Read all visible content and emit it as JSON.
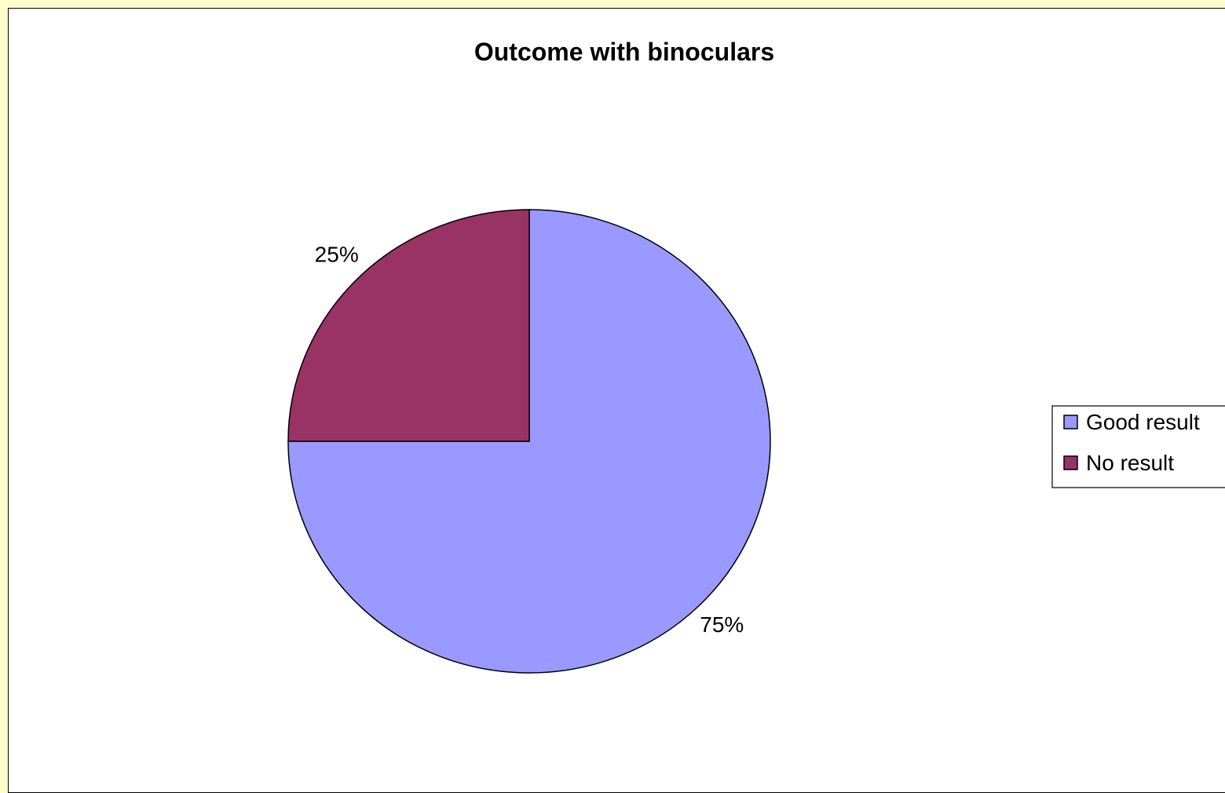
{
  "chart_data": {
    "type": "pie",
    "title": "Outcome with binoculars",
    "categories": [
      "Good result",
      "No result"
    ],
    "values": [
      75,
      25
    ],
    "data_labels": [
      "75%",
      "25%"
    ],
    "colors": [
      "#9999ff",
      "#993366"
    ],
    "legend_position": "right"
  }
}
